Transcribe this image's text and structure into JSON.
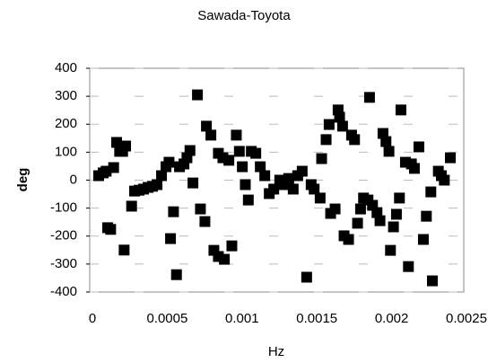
{
  "chart_data": {
    "type": "scatter",
    "title": "Sawada-Toyota",
    "x_label": "Hz",
    "y_label": "deg",
    "color": "#000000",
    "grid": true,
    "xlim": [
      0,
      0.0025
    ],
    "xticks": [
      0,
      0.0005,
      0.001,
      0.0015,
      0.002,
      0.0025
    ],
    "ylim": [
      -400,
      400
    ],
    "yticks": [
      -400,
      -300,
      -200,
      -100,
      0,
      100,
      200,
      300,
      400
    ],
    "x": [
      6e-05,
      9e-05,
      0.00011,
      0.00012,
      0.00014,
      0.00016,
      0.00018,
      0.0002,
      0.00022,
      0.00024,
      0.00023,
      0.00028,
      0.0003,
      0.00033,
      0.00036,
      0.00039,
      0.00042,
      0.00045,
      0.00048,
      0.00051,
      0.00053,
      0.00054,
      0.00056,
      0.00058,
      0.0006,
      0.00063,
      0.00065,
      0.00067,
      0.00069,
      0.00072,
      0.00074,
      0.00077,
      0.00078,
      0.00081,
      0.00083,
      0.00086,
      0.00086,
      0.00089,
      0.0009,
      0.00093,
      0.00095,
      0.00098,
      0.001,
      0.00102,
      0.00104,
      0.00106,
      0.00108,
      0.00111,
      0.00114,
      0.00117,
      0.0012,
      0.00123,
      0.00127,
      0.0013,
      0.00133,
      0.00136,
      0.00139,
      0.00142,
      0.00145,
      0.00148,
      0.0015,
      0.00154,
      0.00155,
      0.00158,
      0.0016,
      0.00161,
      0.00164,
      0.00166,
      0.00167,
      0.00169,
      0.0017,
      0.00173,
      0.00175,
      0.00177,
      0.00179,
      0.00181,
      0.00183,
      0.00186,
      0.00187,
      0.00189,
      0.00192,
      0.00194,
      0.00196,
      0.00198,
      0.002,
      0.00201,
      0.00203,
      0.00205,
      0.00207,
      0.00208,
      0.00211,
      0.00213,
      0.00215,
      0.00217,
      0.0022,
      0.00223,
      0.00225,
      0.00228,
      0.00229,
      0.00233,
      0.00235,
      0.00237,
      0.00241
    ],
    "y": [
      16,
      26,
      32,
      -170,
      -176,
      45,
      135,
      103,
      103,
      122,
      -250,
      -93,
      -39,
      -36,
      -32,
      -26,
      -22,
      -16,
      16,
      48,
      64,
      -209,
      -113,
      -338,
      48,
      58,
      80,
      106,
      -10,
      305,
      -103,
      -148,
      193,
      161,
      -251,
      96,
      -273,
      80,
      -283,
      71,
      -235,
      161,
      103,
      48,
      -16,
      -71,
      103,
      96,
      48,
      16,
      -48,
      -32,
      0,
      -16,
      6,
      -32,
      16,
      32,
      -347,
      -16,
      -32,
      -64,
      77,
      145,
      199,
      -119,
      -103,
      251,
      225,
      193,
      -199,
      -212,
      161,
      145,
      -154,
      -103,
      -64,
      -71,
      296,
      -90,
      -116,
      -145,
      167,
      138,
      103,
      -251,
      -167,
      -122,
      -64,
      251,
      64,
      -309,
      58,
      42,
      119,
      -212,
      -129,
      -42,
      -360,
      32,
      16,
      0,
      80
    ]
  }
}
